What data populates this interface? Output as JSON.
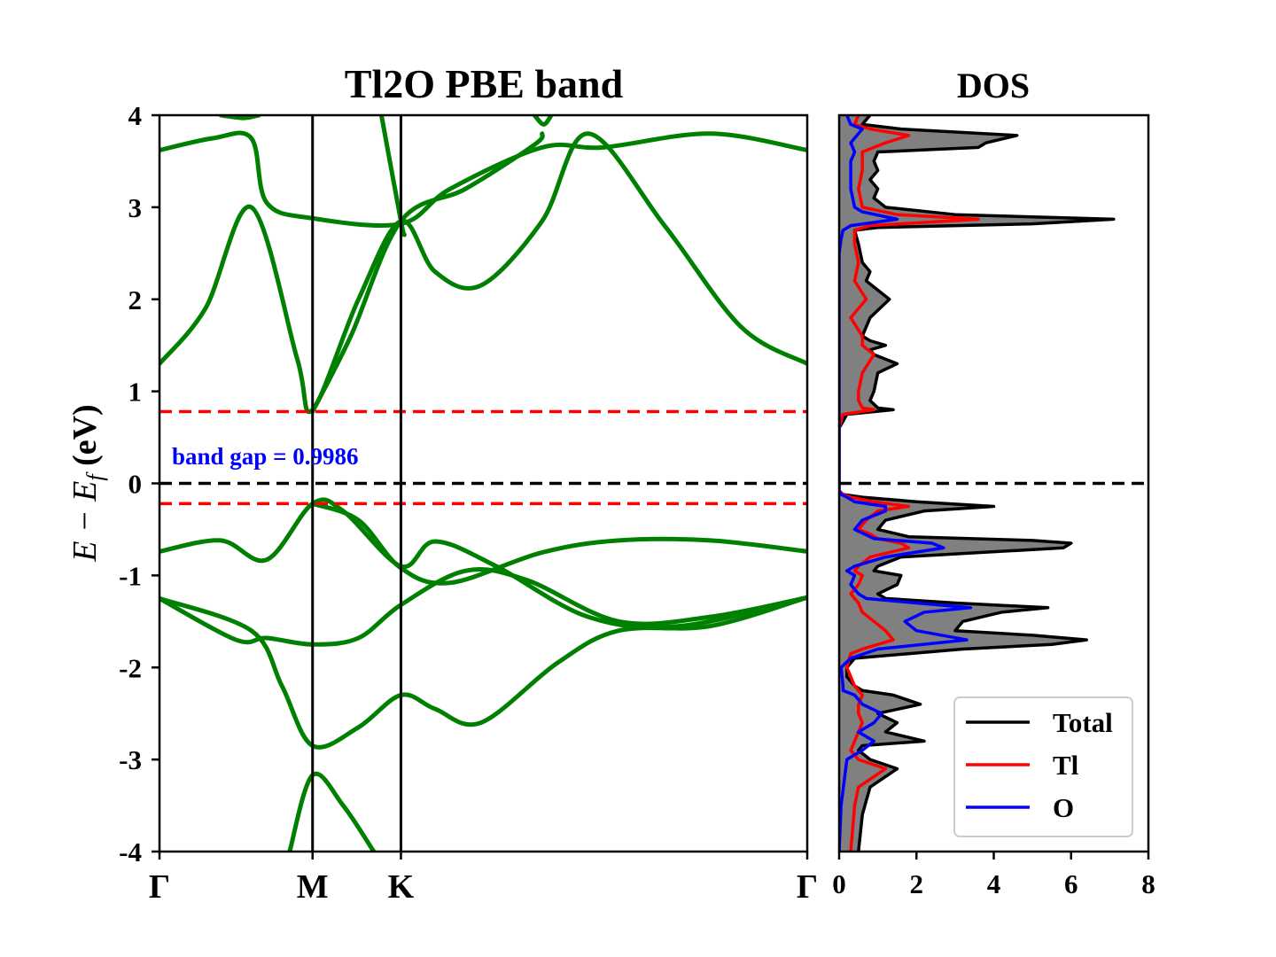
{
  "chart_data": [
    {
      "type": "line",
      "title": "Tl2O PBE band",
      "ylabel_parts": {
        "main": "E − E",
        "sub": "f",
        "unit": " (eV)"
      },
      "ylim": [
        -4,
        4
      ],
      "yticks": [
        4,
        3,
        2,
        1,
        0,
        -1,
        -2,
        -3,
        -4
      ],
      "ytick_labels": [
        "4",
        "3",
        "2",
        "1",
        "0",
        "-1",
        "-2",
        "-3",
        "-4"
      ],
      "kpath": {
        "labels": [
          "Γ",
          "M",
          "K",
          "Γ"
        ],
        "positions": [
          0,
          1,
          1.5774,
          4.2321
        ]
      },
      "band_color": "#008000",
      "fermi_level": 0,
      "vbm": -0.22,
      "cbm": 0.78,
      "band_gap_label": "band gap = 0.9986",
      "band_gap_label_color": "#0000ff",
      "hline_colors": {
        "fermi": "#000000",
        "edges": "#ff0000"
      },
      "series": [
        {
          "x": [
            0,
            0.3,
            0.6,
            0.9,
            1.0,
            1.3,
            1.5774,
            1.8,
            2.1,
            2.5,
            2.8,
            3.3,
            3.8,
            4.2321
          ],
          "y": [
            1.3,
            1.9,
            3.0,
            1.35,
            0.8,
            2.0,
            2.85,
            2.3,
            2.15,
            2.85,
            3.8,
            2.8,
            1.7,
            1.3
          ]
        },
        {
          "x": [
            0,
            0.35,
            0.6,
            0.7,
            1.0,
            1.5774,
            1.9,
            2.5,
            2.9,
            3.6,
            4.2321
          ],
          "y": [
            3.62,
            3.75,
            3.75,
            3.05,
            2.88,
            2.82,
            3.2,
            3.65,
            3.65,
            3.8,
            3.62
          ]
        },
        {
          "x": [
            0.4,
            0.55,
            0.65
          ],
          "y": [
            4.0,
            3.97,
            4.0
          ]
        },
        {
          "x": [
            1.0,
            1.25,
            1.5774,
            2.0,
            2.45,
            2.5
          ],
          "y": [
            0.78,
            1.6,
            2.85,
            3.2,
            3.68,
            3.8
          ]
        },
        {
          "x": [
            1.45,
            1.5774,
            1.6
          ],
          "y": [
            4.0,
            2.85,
            2.7
          ]
        },
        {
          "x": [
            2.45,
            2.51,
            2.56
          ],
          "y": [
            4.0,
            3.9,
            4.0
          ]
        },
        {
          "x": [
            0,
            0.4,
            0.7,
            1.0,
            1.2,
            1.5774,
            1.8,
            2.2,
            2.8,
            3.4,
            4.2321
          ],
          "y": [
            -0.74,
            -0.62,
            -0.83,
            -0.22,
            -0.3,
            -0.9,
            -0.63,
            -0.9,
            -1.45,
            -1.55,
            -1.24
          ]
        },
        {
          "x": [
            1.0,
            1.3,
            1.5774,
            1.9,
            2.5,
            3.0,
            3.6,
            4.2321
          ],
          "y": [
            -0.22,
            -0.4,
            -0.92,
            -1.08,
            -0.75,
            -0.62,
            -0.62,
            -0.74
          ]
        },
        {
          "x": [
            0,
            0.5,
            0.7,
            1.0,
            1.3,
            1.5774,
            2.0,
            2.4,
            3.0,
            3.6,
            4.2321
          ],
          "y": [
            -1.25,
            -1.7,
            -1.68,
            -1.75,
            -1.68,
            -1.32,
            -0.95,
            -1.05,
            -1.5,
            -1.45,
            -1.24
          ]
        },
        {
          "x": [
            0,
            0.6,
            0.8,
            1.0,
            1.3,
            1.5774,
            1.8,
            2.1,
            2.6,
            3.0,
            3.6,
            4.2321
          ],
          "y": [
            -1.25,
            -1.6,
            -2.2,
            -2.85,
            -2.65,
            -2.3,
            -2.45,
            -2.6,
            -1.95,
            -1.6,
            -1.55,
            -1.24
          ]
        },
        {
          "x": [
            0.85,
            1.0,
            1.2,
            1.4
          ],
          "y": [
            -4.0,
            -3.17,
            -3.5,
            -4.0
          ]
        }
      ]
    },
    {
      "type": "area",
      "title": "DOS",
      "xlim": [
        0,
        8
      ],
      "xticks": [
        0,
        2,
        4,
        6,
        8
      ],
      "xtick_labels": [
        "0",
        "2",
        "4",
        "6",
        "8"
      ],
      "ylim": [
        -4,
        4
      ],
      "fill_color": "#808080",
      "fermi_level": 0,
      "legend": {
        "position": "lower right",
        "entries": [
          "Total",
          "Tl",
          "O"
        ]
      },
      "series": [
        {
          "name": "Total",
          "color": "#000000",
          "energy": [
            -4.0,
            -3.6,
            -3.3,
            -3.1,
            -3.0,
            -2.9,
            -2.85,
            -2.8,
            -2.7,
            -2.6,
            -2.5,
            -2.4,
            -2.3,
            -2.25,
            -2.2,
            -2.1,
            -2.0,
            -1.9,
            -1.8,
            -1.75,
            -1.7,
            -1.65,
            -1.6,
            -1.5,
            -1.4,
            -1.35,
            -1.3,
            -1.25,
            -1.2,
            -1.1,
            -1.0,
            -0.95,
            -0.9,
            -0.8,
            -0.7,
            -0.65,
            -0.62,
            -0.58,
            -0.5,
            -0.4,
            -0.3,
            -0.25,
            -0.2,
            -0.15,
            -0.12,
            -0.08,
            0.0,
            0.6,
            0.75,
            0.8,
            0.82,
            0.9,
            1.0,
            1.2,
            1.3,
            1.4,
            1.45,
            1.5,
            1.55,
            1.6,
            1.8,
            2.0,
            2.2,
            2.3,
            2.4,
            2.6,
            2.75,
            2.78,
            2.82,
            2.87,
            2.92,
            3.0,
            3.1,
            3.2,
            3.3,
            3.4,
            3.5,
            3.6,
            3.65,
            3.7,
            3.78,
            3.85,
            3.9,
            4.0
          ],
          "dos": [
            0.5,
            0.6,
            0.8,
            1.5,
            0.8,
            0.5,
            0.6,
            2.2,
            1.2,
            1.5,
            1.0,
            2.1,
            1.4,
            0.6,
            0.4,
            0.2,
            0.2,
            0.4,
            3.2,
            5.5,
            6.4,
            5.0,
            3.0,
            3.2,
            4.2,
            5.4,
            3.0,
            1.2,
            1.0,
            1.5,
            1.6,
            0.9,
            1.0,
            1.6,
            5.8,
            6.0,
            5.0,
            1.8,
            1.0,
            1.2,
            2.2,
            4.0,
            2.0,
            0.6,
            0.1,
            0.0,
            0.0,
            0.0,
            0.2,
            1.4,
            1.0,
            0.8,
            0.9,
            1.0,
            1.5,
            0.9,
            0.8,
            1.2,
            0.8,
            0.6,
            0.8,
            1.3,
            0.7,
            0.8,
            0.6,
            0.5,
            0.4,
            1.0,
            5.0,
            7.1,
            3.0,
            1.2,
            0.9,
            1.0,
            0.8,
            1.0,
            0.9,
            1.0,
            3.6,
            3.8,
            4.6,
            1.6,
            0.6,
            0.8
          ]
        },
        {
          "name": "Tl",
          "color": "#ff0000",
          "energy": [
            -4.0,
            -3.5,
            -3.3,
            -3.1,
            -3.0,
            -2.9,
            -2.8,
            -2.6,
            -2.5,
            -2.4,
            -2.3,
            -2.2,
            -2.0,
            -1.85,
            -1.8,
            -1.7,
            -1.6,
            -1.5,
            -1.4,
            -1.3,
            -1.25,
            -1.2,
            -1.1,
            -1.0,
            -0.95,
            -0.9,
            -0.8,
            -0.7,
            -0.65,
            -0.6,
            -0.55,
            -0.5,
            -0.4,
            -0.3,
            -0.25,
            -0.2,
            -0.15,
            -0.12,
            -0.08,
            0.0,
            0.6,
            0.75,
            0.8,
            0.82,
            0.9,
            1.0,
            1.2,
            1.4,
            1.5,
            1.6,
            1.8,
            2.0,
            2.2,
            2.4,
            2.6,
            2.75,
            2.8,
            2.87,
            2.92,
            3.0,
            3.2,
            3.4,
            3.6,
            3.7,
            3.78,
            3.85,
            3.9,
            4.0
          ],
          "dos": [
            0.3,
            0.4,
            0.5,
            1.2,
            0.5,
            0.3,
            0.4,
            0.6,
            0.5,
            0.5,
            0.6,
            0.4,
            0.2,
            0.3,
            0.6,
            1.4,
            1.2,
            0.9,
            0.6,
            0.5,
            0.4,
            0.3,
            0.5,
            0.6,
            0.4,
            0.5,
            0.8,
            1.8,
            1.6,
            1.0,
            0.8,
            0.5,
            0.7,
            1.0,
            1.8,
            0.9,
            0.3,
            0.1,
            0.0,
            0.0,
            0.0,
            0.1,
            0.9,
            0.6,
            0.5,
            0.5,
            0.6,
            0.9,
            0.6,
            0.6,
            0.3,
            0.7,
            0.4,
            0.5,
            0.4,
            0.4,
            0.8,
            3.6,
            1.5,
            0.6,
            0.5,
            0.6,
            0.6,
            1.2,
            1.8,
            0.8,
            0.4,
            0.5
          ]
        },
        {
          "name": "O",
          "color": "#0000ff",
          "energy": [
            -4.0,
            -3.5,
            -3.0,
            -2.9,
            -2.8,
            -2.7,
            -2.6,
            -2.5,
            -2.4,
            -2.3,
            -2.25,
            -2.2,
            -2.0,
            -1.9,
            -1.8,
            -1.7,
            -1.6,
            -1.5,
            -1.4,
            -1.35,
            -1.3,
            -1.25,
            -1.2,
            -1.1,
            -1.0,
            -0.95,
            -0.9,
            -0.8,
            -0.7,
            -0.65,
            -0.6,
            -0.5,
            -0.4,
            -0.3,
            -0.25,
            -0.2,
            -0.15,
            -0.12,
            -0.08,
            0.0,
            1.0,
            2.0,
            2.5,
            2.65,
            2.75,
            2.8,
            2.87,
            2.95,
            3.0,
            3.2,
            3.4,
            3.5,
            3.6,
            3.7,
            3.8,
            3.85,
            3.9,
            4.0
          ],
          "dos": [
            0.0,
            0.05,
            0.2,
            0.6,
            0.9,
            0.5,
            0.9,
            1.1,
            0.6,
            0.4,
            0.1,
            0.1,
            0.05,
            0.3,
            1.0,
            3.3,
            2.0,
            1.7,
            2.2,
            3.4,
            2.0,
            0.7,
            0.5,
            0.3,
            0.4,
            0.2,
            0.4,
            1.2,
            2.7,
            2.4,
            0.9,
            0.4,
            0.6,
            1.2,
            1.2,
            0.4,
            0.2,
            0.05,
            0.0,
            0.0,
            0.0,
            0.0,
            0.0,
            0.05,
            0.1,
            0.3,
            1.5,
            0.6,
            0.4,
            0.3,
            0.3,
            0.3,
            0.4,
            0.3,
            0.5,
            0.6,
            0.3,
            0.2
          ]
        }
      ]
    }
  ]
}
